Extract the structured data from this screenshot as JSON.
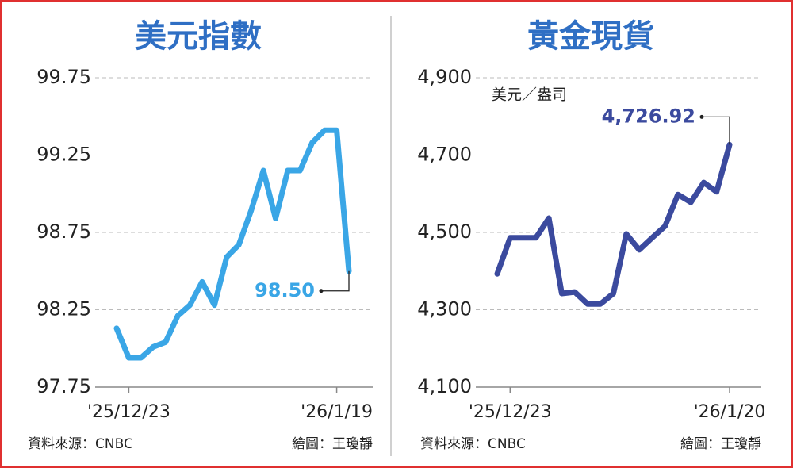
{
  "chart_data": [
    {
      "type": "line",
      "title": "美元指數",
      "categories": [
        null,
        "'25/12/23",
        null,
        null,
        null,
        null,
        null,
        null,
        null,
        null,
        null,
        null,
        null,
        null,
        null,
        null,
        null,
        null,
        "'26/1/19",
        null
      ],
      "values": [
        98.13,
        97.94,
        97.94,
        98.01,
        98.04,
        98.21,
        98.28,
        98.43,
        98.28,
        98.59,
        98.67,
        98.89,
        99.15,
        98.84,
        99.15,
        99.15,
        99.33,
        99.41,
        99.41,
        98.5
      ],
      "value_labels": [
        null,
        null,
        null,
        null,
        null,
        null,
        null,
        null,
        null,
        null,
        null,
        null,
        null,
        null,
        null,
        null,
        null,
        null,
        null,
        "98.50"
      ],
      "color": "#3aa6e6",
      "ylim": [
        97.75,
        99.75
      ],
      "yticks": [
        97.75,
        98.25,
        98.75,
        99.25,
        99.75
      ],
      "grid": true,
      "source": "資料來源：CNBC",
      "credit": "繪圖：王瓊靜"
    },
    {
      "type": "line",
      "title": "黃金現貨",
      "unit": "美元／盎司",
      "categories": [
        null,
        "'25/12/23",
        null,
        null,
        null,
        null,
        null,
        null,
        null,
        null,
        null,
        null,
        null,
        null,
        null,
        null,
        null,
        null,
        "'26/1/20"
      ],
      "values": [
        4393,
        4486,
        4486,
        4486,
        4537,
        4342,
        4346,
        4315,
        4315,
        4342,
        4496,
        4455,
        4486,
        4516,
        4598,
        4578,
        4629,
        4605,
        4726.92
      ],
      "value_labels": [
        null,
        null,
        null,
        null,
        null,
        null,
        null,
        null,
        null,
        null,
        null,
        null,
        null,
        null,
        null,
        null,
        null,
        null,
        "4,726.92"
      ],
      "color": "#3b4a9e",
      "ylim": [
        4100,
        4900
      ],
      "yticks": [
        {
          "value": 4100,
          "label": "4,100"
        },
        {
          "value": 4300,
          "label": "4,300"
        },
        {
          "value": 4500,
          "label": "4,500"
        },
        {
          "value": 4700,
          "label": "4,700"
        },
        {
          "value": 4900,
          "label": "4,900"
        }
      ],
      "grid": true,
      "source": "資料來源：CNBC",
      "credit": "繪圖：王瓊靜"
    }
  ]
}
